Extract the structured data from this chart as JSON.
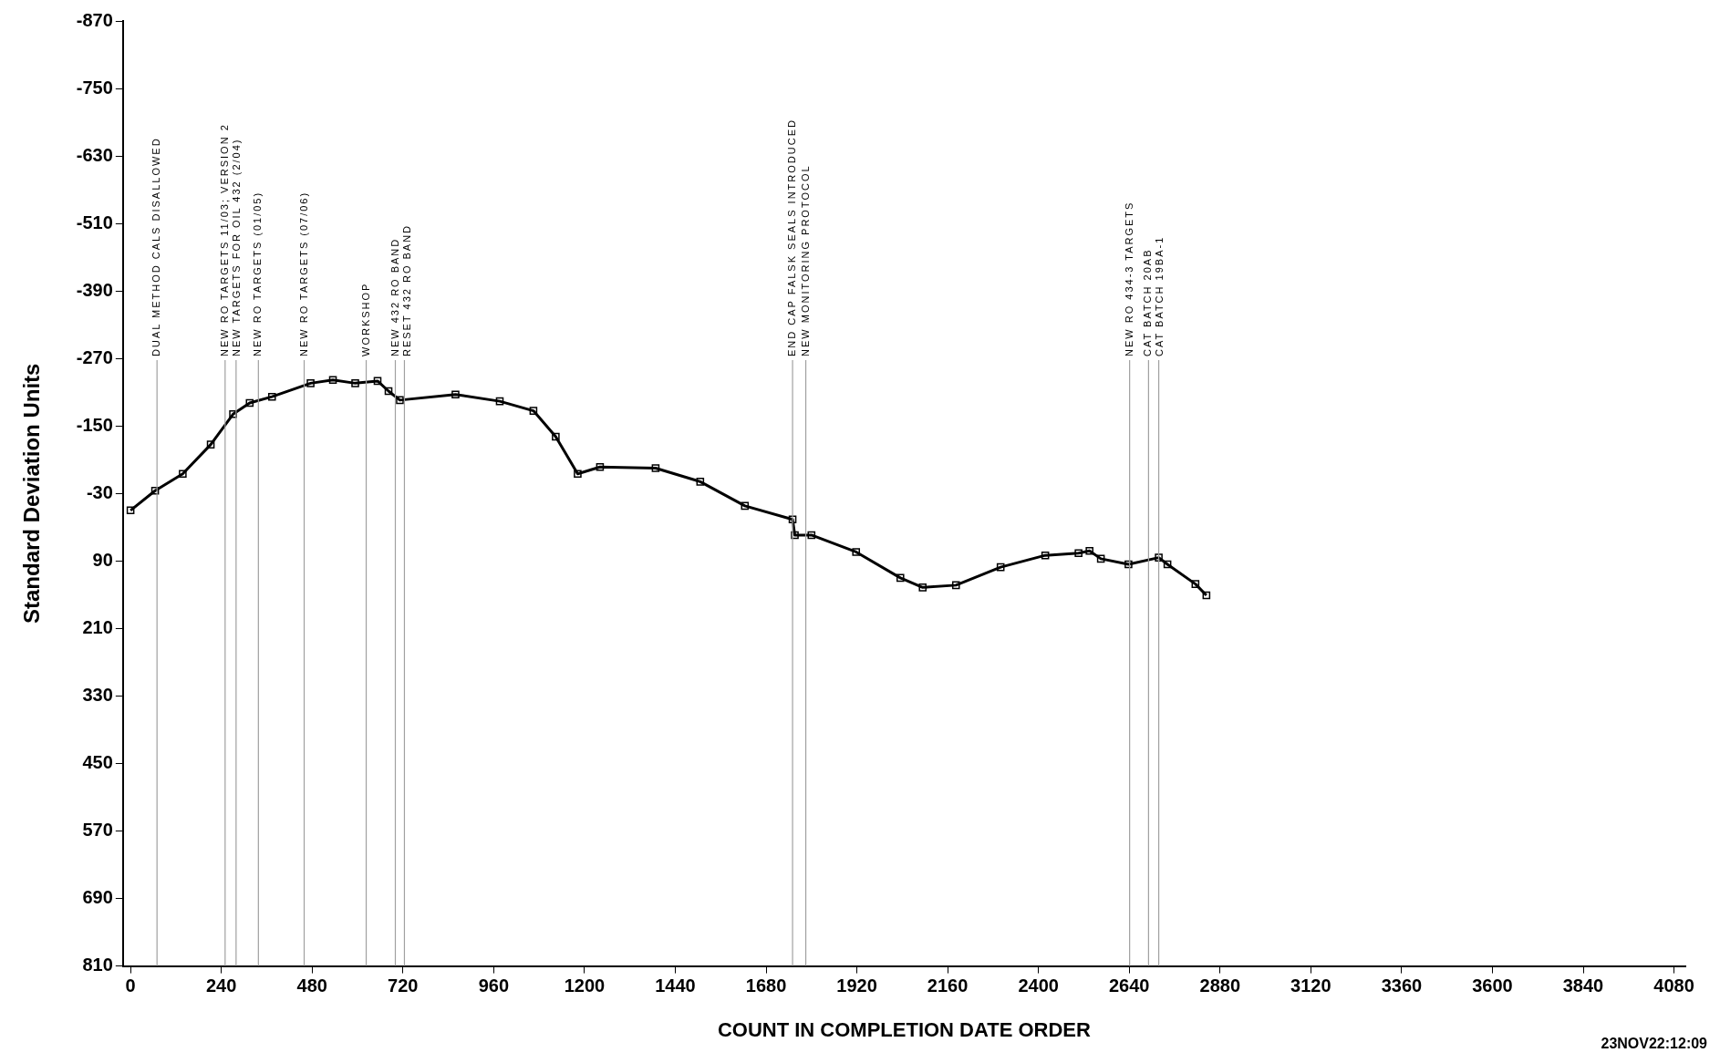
{
  "chart_data": {
    "type": "line",
    "xlabel": "COUNT IN COMPLETION DATE ORDER",
    "ylabel": "Standard Deviation Units",
    "annotations": [
      "23NOV22:12:09"
    ],
    "xlim": [
      -20,
      4110
    ],
    "xticks": [
      0,
      240,
      480,
      720,
      960,
      1200,
      1440,
      1680,
      1920,
      2160,
      2400,
      2640,
      2880,
      3120,
      3360,
      3600,
      3840,
      4080
    ],
    "ylim": [
      810,
      -870
    ],
    "yticks": [
      -870,
      -750,
      -630,
      -510,
      -390,
      -270,
      -150,
      -30,
      90,
      210,
      330,
      450,
      570,
      690,
      810
    ],
    "grid": false,
    "legend": false,
    "marker": "square",
    "line_style": "solid",
    "series": [
      {
        "color": "#000000",
        "x": [
          0,
          65,
          138,
          212,
          271,
          315,
          374,
          476,
          535,
          594,
          653,
          682,
          712,
          859,
          976,
          1065,
          1124,
          1182,
          1241,
          1388,
          1506,
          1624,
          1750,
          1756,
          1800,
          1918,
          2035,
          2094,
          2182,
          2300,
          2418,
          2506,
          2535,
          2565,
          2638,
          2718,
          2741,
          2815,
          2844
        ],
        "values": [
          0,
          -35,
          -65,
          -117,
          -171,
          -191,
          -202,
          -226,
          -232,
          -226,
          -230,
          -212,
          -196,
          -206,
          -194,
          -177,
          -131,
          -65,
          -77,
          -75,
          -51,
          -8,
          16,
          44,
          44,
          74,
          120,
          137,
          133,
          101,
          80,
          76,
          72,
          86,
          96,
          84,
          96,
          131,
          151
        ]
      }
    ],
    "ref_lines": [
      {
        "axis": "x",
        "value": 70,
        "label": "DUAL METHOD CALS DISALLOWED",
        "color": "#a0a0a0"
      },
      {
        "axis": "x",
        "value": 250,
        "label": "NEW RO TARGETS 11/03; VERSION 2",
        "color": "#a0a0a0"
      },
      {
        "axis": "x",
        "value": 279,
        "label": "NEW TARGETS FOR OIL 432 (2/04)",
        "color": "#a0a0a0"
      },
      {
        "axis": "x",
        "value": 338,
        "label": "NEW RO TARGETS (01/05)",
        "color": "#a0a0a0"
      },
      {
        "axis": "x",
        "value": 459,
        "label": "NEW RO TARGETS (07/06)",
        "color": "#a0a0a0"
      },
      {
        "axis": "x",
        "value": 623,
        "label": "WORKSHOP",
        "color": "#a0a0a0"
      },
      {
        "axis": "x",
        "value": 700,
        "label": "NEW 432 RO BAND",
        "color": "#a0a0a0"
      },
      {
        "axis": "x",
        "value": 724,
        "label": "RESET 432 RO BAND",
        "color": "#a0a0a0"
      },
      {
        "axis": "x",
        "value": 1750,
        "label": "END CAP FALSK SEALS INTRODUCED",
        "color": "#a0a0a0"
      },
      {
        "axis": "x",
        "value": 1785,
        "label": "NEW MONITORING PROTOCOL",
        "color": "#a0a0a0"
      },
      {
        "axis": "x",
        "value": 2641,
        "label": "NEW RO 434-3 TARGETS",
        "color": "#a0a0a0"
      },
      {
        "axis": "x",
        "value": 2691,
        "label": "CAT BATCH 20AB",
        "color": "#a0a0a0"
      },
      {
        "axis": "x",
        "value": 2718,
        "label": "CAT BATCH 19BA-1",
        "color": "#a0a0a0"
      }
    ]
  }
}
